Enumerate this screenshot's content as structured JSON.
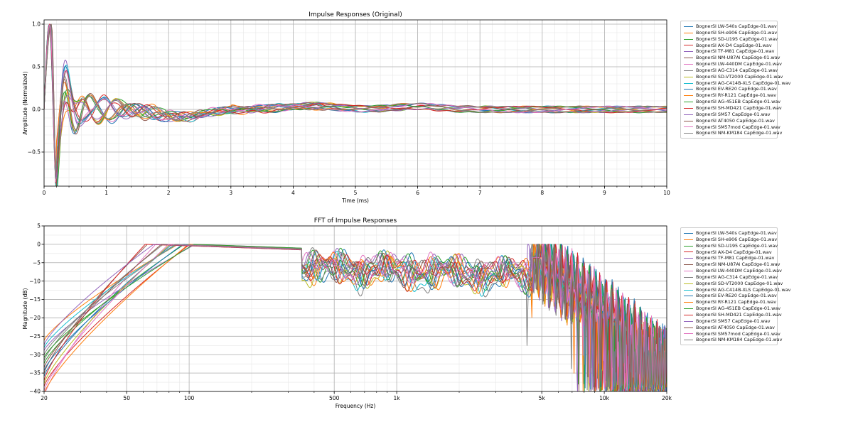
{
  "chart_data": [
    {
      "type": "line",
      "title": "Impulse Responses (Original)",
      "xlabel": "Time (ms)",
      "ylabel": "Amplitude (Normalized)",
      "xlim": [
        0,
        10
      ],
      "ylim": [
        -0.9,
        1.05
      ],
      "xticks": [
        0,
        1,
        2,
        3,
        4,
        5,
        6,
        7,
        8,
        9,
        10
      ],
      "xtick_labels": [
        "0",
        "1",
        "2",
        "3",
        "4",
        "5",
        "6",
        "7",
        "8",
        "9",
        "10"
      ],
      "yticks": [
        1.0,
        0.5,
        0.0,
        -0.5
      ],
      "ytick_labels": [
        "1.0",
        "0.5",
        "0.0",
        "−0.5"
      ],
      "grid": true,
      "legend_position": "outside-right-top",
      "series": [
        {
          "name": "BognerSI LW-540s CapEdge-01.wav",
          "color": "#1f77b4"
        },
        {
          "name": "BognerSI SH-e906 CapEdge-01.wav",
          "color": "#ff7f0e"
        },
        {
          "name": "BognerSI SD-U195 CapEdge-01.wav",
          "color": "#2ca02c"
        },
        {
          "name": "BognerSI AX-D4 CapEdge-01.wav",
          "color": "#d62728"
        },
        {
          "name": "BognerSI TF-M81 CapEdge-01.wav",
          "color": "#9467bd"
        },
        {
          "name": "BognerSI NM-U87Ai CapEdge-01.wav",
          "color": "#8c564b"
        },
        {
          "name": "BognerSI LW-440DM CapEdge-01.wav",
          "color": "#e377c2"
        },
        {
          "name": "BognerSI AG-C314 CapEdge-01.wav",
          "color": "#7f7f7f"
        },
        {
          "name": "BognerSI SD-VT2000 CapEdge-01.wav",
          "color": "#bcbd22"
        },
        {
          "name": "BognerSI AG-C414B-XLS CapEdge-01.wav",
          "color": "#17becf"
        },
        {
          "name": "BognerSI EV-RE20 CapEdge-01.wav",
          "color": "#1f77b4"
        },
        {
          "name": "BognerSI RY-R121 CapEdge-01.wav",
          "color": "#ff7f0e"
        },
        {
          "name": "BognerSI AG-451EB CapEdge-01.wav",
          "color": "#2ca02c"
        },
        {
          "name": "BognerSI SH-MD421 CapEdge-01.wav",
          "color": "#d62728"
        },
        {
          "name": "BognerSI SM57 CapEdge-01.wav",
          "color": "#9467bd"
        },
        {
          "name": "BognerSI AT4050 CapEdge-01.wav",
          "color": "#8c564b"
        },
        {
          "name": "BognerSI SM57mod CapEdge-01.wav",
          "color": "#e377c2"
        },
        {
          "name": "BognerSI NM-KM184 CapEdge-01.wav",
          "color": "#7f7f7f"
        }
      ]
    },
    {
      "type": "line",
      "title": "FFT of Impulse Responses",
      "xlabel": "Frequency (Hz)",
      "ylabel": "Magnitude (dB)",
      "xscale": "log",
      "xlim": [
        20,
        20000
      ],
      "ylim": [
        -40,
        5
      ],
      "xticks": [
        20,
        50,
        100,
        500,
        1000,
        5000,
        10000,
        20000
      ],
      "xtick_labels": [
        "20",
        "50",
        "100",
        "500",
        "1k",
        "5k",
        "10k",
        "20k"
      ],
      "yticks": [
        5,
        0,
        -5,
        -10,
        -15,
        -20,
        -25,
        -30,
        -35,
        -40
      ],
      "ytick_labels": [
        "5",
        "0",
        "−5",
        "−10",
        "−15",
        "−20",
        "−25",
        "−30",
        "−35",
        "−40"
      ],
      "grid": true,
      "legend_position": "outside-right-top",
      "series": [
        {
          "name": "BognerSI LW-540s CapEdge-01.wav",
          "color": "#1f77b4"
        },
        {
          "name": "BognerSI SH-e906 CapEdge-01.wav",
          "color": "#ff7f0e"
        },
        {
          "name": "BognerSI SD-U195 CapEdge-01.wav",
          "color": "#2ca02c"
        },
        {
          "name": "BognerSI AX-D4 CapEdge-01.wav",
          "color": "#d62728"
        },
        {
          "name": "BognerSI TF-M81 CapEdge-01.wav",
          "color": "#9467bd"
        },
        {
          "name": "BognerSI NM-U87Ai CapEdge-01.wav",
          "color": "#8c564b"
        },
        {
          "name": "BognerSI LW-440DM CapEdge-01.wav",
          "color": "#e377c2"
        },
        {
          "name": "BognerSI AG-C314 CapEdge-01.wav",
          "color": "#7f7f7f"
        },
        {
          "name": "BognerSI SD-VT2000 CapEdge-01.wav",
          "color": "#bcbd22"
        },
        {
          "name": "BognerSI AG-C414B-XLS CapEdge-01.wav",
          "color": "#17becf"
        },
        {
          "name": "BognerSI EV-RE20 CapEdge-01.wav",
          "color": "#1f77b4"
        },
        {
          "name": "BognerSI RY-R121 CapEdge-01.wav",
          "color": "#ff7f0e"
        },
        {
          "name": "BognerSI AG-451EB CapEdge-01.wav",
          "color": "#2ca02c"
        },
        {
          "name": "BognerSI SH-MD421 CapEdge-01.wav",
          "color": "#d62728"
        },
        {
          "name": "BognerSI SM57 CapEdge-01.wav",
          "color": "#9467bd"
        },
        {
          "name": "BognerSI AT4050 CapEdge-01.wav",
          "color": "#8c564b"
        },
        {
          "name": "BognerSI SM57mod CapEdge-01.wav",
          "color": "#e377c2"
        },
        {
          "name": "BognerSI NM-KM184 CapEdge-01.wav",
          "color": "#7f7f7f"
        }
      ]
    }
  ]
}
